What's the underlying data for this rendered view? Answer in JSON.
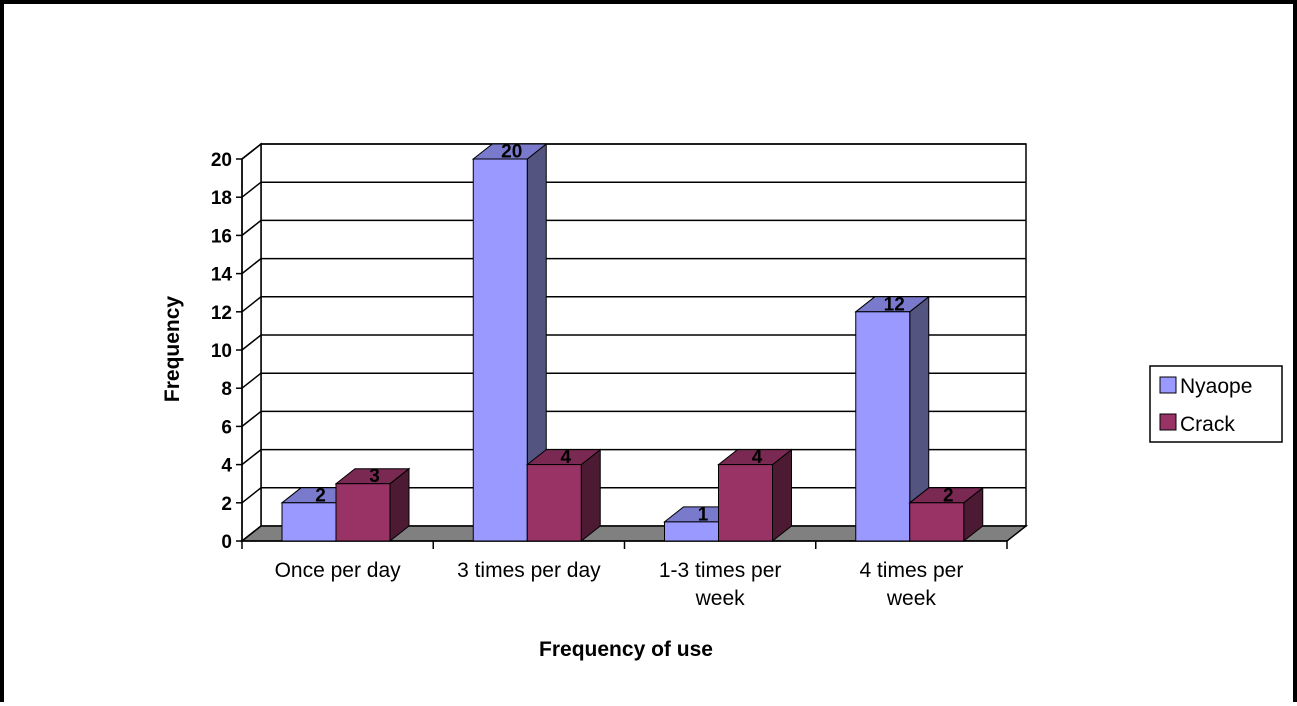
{
  "chart_data": {
    "type": "bar",
    "variant": "3d-clustered-column",
    "title": "",
    "xlabel": "Frequency of use",
    "ylabel": "Frequency",
    "categories": [
      [
        "Once per day"
      ],
      [
        "3 times per day"
      ],
      [
        "1-3 times per",
        "week"
      ],
      [
        "4 times per",
        "week"
      ]
    ],
    "series": [
      {
        "name": "Nyaope",
        "values": [
          2,
          20,
          1,
          12
        ],
        "color": "#9999ff",
        "side_color": "#545480",
        "top_color": "#7a7acc"
      },
      {
        "name": "Crack",
        "values": [
          3,
          4,
          4,
          2
        ],
        "color": "#993366",
        "side_color": "#4d1a33",
        "top_color": "#7a2952"
      }
    ],
    "yticks": [
      "0",
      "2",
      "4",
      "6",
      "8",
      "10",
      "12",
      "14",
      "16",
      "18",
      "20"
    ],
    "ylim": [
      0,
      20
    ],
    "grid": true,
    "legend": "right",
    "floor_color": "#808080"
  }
}
